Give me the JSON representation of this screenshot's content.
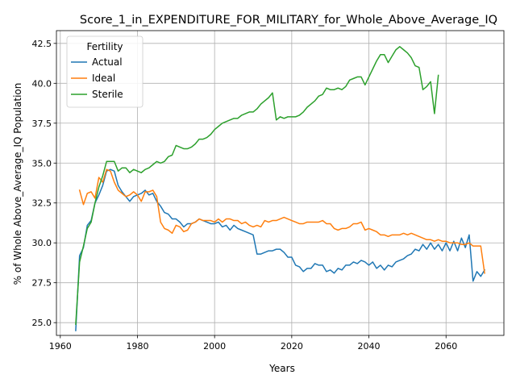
{
  "chart_data": {
    "type": "line",
    "title": "Score_1_in_EXPENDITURE_FOR_MILITARY_for_Whole_Above_Average_IQ",
    "xlabel": "Years",
    "ylabel": "% of Whole Above_Average_IQ Population",
    "xlim": [
      1959,
      2075
    ],
    "ylim": [
      24.2,
      43.3
    ],
    "xticks": [
      1960,
      1980,
      2000,
      2020,
      2040,
      2060
    ],
    "yticks": [
      25.0,
      27.5,
      30.0,
      32.5,
      35.0,
      37.5,
      40.0,
      42.5
    ],
    "grid": true,
    "legend": {
      "title": "Fertility",
      "position": "top-left"
    },
    "series": [
      {
        "name": "Actual",
        "color": "#1f77b4",
        "points": [
          [
            1964,
            24.5
          ],
          [
            1965,
            29.2
          ],
          [
            1966,
            29.7
          ],
          [
            1967,
            31.1
          ],
          [
            1968,
            31.4
          ],
          [
            1969,
            32.5
          ],
          [
            1970,
            33.0
          ],
          [
            1971,
            33.6
          ],
          [
            1972,
            34.5
          ],
          [
            1973,
            34.6
          ],
          [
            1974,
            34.5
          ],
          [
            1975,
            33.6
          ],
          [
            1976,
            33.2
          ],
          [
            1977,
            32.9
          ],
          [
            1978,
            32.6
          ],
          [
            1979,
            32.9
          ],
          [
            1980,
            33.0
          ],
          [
            1981,
            33.1
          ],
          [
            1982,
            33.3
          ],
          [
            1983,
            33.0
          ],
          [
            1984,
            33.1
          ],
          [
            1985,
            32.6
          ],
          [
            1986,
            32.3
          ],
          [
            1987,
            31.9
          ],
          [
            1988,
            31.8
          ],
          [
            1989,
            31.5
          ],
          [
            1990,
            31.5
          ],
          [
            1991,
            31.3
          ],
          [
            1992,
            31.0
          ],
          [
            1993,
            31.2
          ],
          [
            1994,
            31.2
          ],
          [
            1995,
            31.3
          ],
          [
            1996,
            31.5
          ],
          [
            1997,
            31.4
          ],
          [
            1998,
            31.3
          ],
          [
            1999,
            31.2
          ],
          [
            2000,
            31.2
          ],
          [
            2001,
            31.3
          ],
          [
            2002,
            31.0
          ],
          [
            2003,
            31.1
          ],
          [
            2004,
            30.8
          ],
          [
            2005,
            31.1
          ],
          [
            2006,
            30.9
          ],
          [
            2007,
            30.8
          ],
          [
            2008,
            30.7
          ],
          [
            2009,
            30.6
          ],
          [
            2010,
            30.5
          ],
          [
            2011,
            29.3
          ],
          [
            2012,
            29.3
          ],
          [
            2013,
            29.4
          ],
          [
            2014,
            29.5
          ],
          [
            2015,
            29.5
          ],
          [
            2016,
            29.6
          ],
          [
            2017,
            29.6
          ],
          [
            2018,
            29.4
          ],
          [
            2019,
            29.1
          ],
          [
            2020,
            29.1
          ],
          [
            2021,
            28.6
          ],
          [
            2022,
            28.5
          ],
          [
            2023,
            28.2
          ],
          [
            2024,
            28.4
          ],
          [
            2025,
            28.4
          ],
          [
            2026,
            28.7
          ],
          [
            2027,
            28.6
          ],
          [
            2028,
            28.6
          ],
          [
            2029,
            28.2
          ],
          [
            2030,
            28.3
          ],
          [
            2031,
            28.1
          ],
          [
            2032,
            28.4
          ],
          [
            2033,
            28.3
          ],
          [
            2034,
            28.6
          ],
          [
            2035,
            28.6
          ],
          [
            2036,
            28.8
          ],
          [
            2037,
            28.7
          ],
          [
            2038,
            28.9
          ],
          [
            2039,
            28.8
          ],
          [
            2040,
            28.6
          ],
          [
            2041,
            28.8
          ],
          [
            2042,
            28.4
          ],
          [
            2043,
            28.6
          ],
          [
            2044,
            28.3
          ],
          [
            2045,
            28.6
          ],
          [
            2046,
            28.5
          ],
          [
            2047,
            28.8
          ],
          [
            2048,
            28.9
          ],
          [
            2049,
            29.0
          ],
          [
            2050,
            29.2
          ],
          [
            2051,
            29.3
          ],
          [
            2052,
            29.6
          ],
          [
            2053,
            29.5
          ],
          [
            2054,
            29.9
          ],
          [
            2055,
            29.6
          ],
          [
            2056,
            30.0
          ],
          [
            2057,
            29.6
          ],
          [
            2058,
            29.9
          ],
          [
            2059,
            29.5
          ],
          [
            2060,
            30.0
          ],
          [
            2061,
            29.5
          ],
          [
            2062,
            30.1
          ],
          [
            2063,
            29.5
          ],
          [
            2064,
            30.3
          ],
          [
            2065,
            29.7
          ],
          [
            2066,
            30.5
          ],
          [
            2067,
            27.6
          ],
          [
            2068,
            28.2
          ],
          [
            2069,
            27.9
          ],
          [
            2070,
            28.3
          ]
        ]
      },
      {
        "name": "Ideal",
        "color": "#ff7f0e",
        "points": [
          [
            1965,
            33.3
          ],
          [
            1966,
            32.4
          ],
          [
            1967,
            33.1
          ],
          [
            1968,
            33.2
          ],
          [
            1969,
            32.8
          ],
          [
            1970,
            34.1
          ],
          [
            1971,
            33.8
          ],
          [
            1972,
            34.6
          ],
          [
            1973,
            34.5
          ],
          [
            1974,
            33.8
          ],
          [
            1975,
            33.3
          ],
          [
            1976,
            33.1
          ],
          [
            1977,
            32.9
          ],
          [
            1978,
            33.0
          ],
          [
            1979,
            33.2
          ],
          [
            1980,
            33.0
          ],
          [
            1981,
            32.6
          ],
          [
            1982,
            33.2
          ],
          [
            1983,
            33.2
          ],
          [
            1984,
            33.3
          ],
          [
            1985,
            32.9
          ],
          [
            1986,
            31.3
          ],
          [
            1987,
            30.9
          ],
          [
            1988,
            30.8
          ],
          [
            1989,
            30.6
          ],
          [
            1990,
            31.1
          ],
          [
            1991,
            31.0
          ],
          [
            1992,
            30.7
          ],
          [
            1993,
            30.8
          ],
          [
            1994,
            31.2
          ],
          [
            1995,
            31.3
          ],
          [
            1996,
            31.5
          ],
          [
            1997,
            31.4
          ],
          [
            1998,
            31.4
          ],
          [
            1999,
            31.4
          ],
          [
            2000,
            31.3
          ],
          [
            2001,
            31.5
          ],
          [
            2002,
            31.3
          ],
          [
            2003,
            31.5
          ],
          [
            2004,
            31.5
          ],
          [
            2005,
            31.4
          ],
          [
            2006,
            31.4
          ],
          [
            2007,
            31.2
          ],
          [
            2008,
            31.3
          ],
          [
            2009,
            31.1
          ],
          [
            2010,
            31.0
          ],
          [
            2011,
            31.1
          ],
          [
            2012,
            31.0
          ],
          [
            2013,
            31.4
          ],
          [
            2014,
            31.3
          ],
          [
            2015,
            31.4
          ],
          [
            2016,
            31.4
          ],
          [
            2017,
            31.5
          ],
          [
            2018,
            31.6
          ],
          [
            2019,
            31.5
          ],
          [
            2020,
            31.4
          ],
          [
            2021,
            31.3
          ],
          [
            2022,
            31.2
          ],
          [
            2023,
            31.2
          ],
          [
            2024,
            31.3
          ],
          [
            2025,
            31.3
          ],
          [
            2026,
            31.3
          ],
          [
            2027,
            31.3
          ],
          [
            2028,
            31.4
          ],
          [
            2029,
            31.2
          ],
          [
            2030,
            31.2
          ],
          [
            2031,
            30.9
          ],
          [
            2032,
            30.8
          ],
          [
            2033,
            30.9
          ],
          [
            2034,
            30.9
          ],
          [
            2035,
            31.0
          ],
          [
            2036,
            31.2
          ],
          [
            2037,
            31.2
          ],
          [
            2038,
            31.3
          ],
          [
            2039,
            30.8
          ],
          [
            2040,
            30.9
          ],
          [
            2041,
            30.8
          ],
          [
            2042,
            30.7
          ],
          [
            2043,
            30.5
          ],
          [
            2044,
            30.5
          ],
          [
            2045,
            30.4
          ],
          [
            2046,
            30.5
          ],
          [
            2047,
            30.5
          ],
          [
            2048,
            30.5
          ],
          [
            2049,
            30.6
          ],
          [
            2050,
            30.5
          ],
          [
            2051,
            30.6
          ],
          [
            2052,
            30.5
          ],
          [
            2053,
            30.4
          ],
          [
            2054,
            30.3
          ],
          [
            2055,
            30.2
          ],
          [
            2056,
            30.2
          ],
          [
            2057,
            30.1
          ],
          [
            2058,
            30.2
          ],
          [
            2059,
            30.1
          ],
          [
            2060,
            30.1
          ],
          [
            2061,
            30.0
          ],
          [
            2062,
            30.0
          ],
          [
            2063,
            30.0
          ],
          [
            2064,
            29.9
          ],
          [
            2065,
            29.9
          ],
          [
            2066,
            30.0
          ],
          [
            2067,
            29.8
          ],
          [
            2068,
            29.8
          ],
          [
            2069,
            29.8
          ],
          [
            2070,
            28.1
          ]
        ]
      },
      {
        "name": "Sterile",
        "color": "#2ca02c",
        "points": [
          [
            1964,
            24.9
          ],
          [
            1965,
            28.8
          ],
          [
            1966,
            29.8
          ],
          [
            1967,
            30.9
          ],
          [
            1968,
            31.3
          ],
          [
            1969,
            32.5
          ],
          [
            1970,
            33.5
          ],
          [
            1971,
            34.2
          ],
          [
            1972,
            35.1
          ],
          [
            1973,
            35.1
          ],
          [
            1974,
            35.1
          ],
          [
            1975,
            34.5
          ],
          [
            1976,
            34.7
          ],
          [
            1977,
            34.7
          ],
          [
            1978,
            34.4
          ],
          [
            1979,
            34.6
          ],
          [
            1980,
            34.5
          ],
          [
            1981,
            34.4
          ],
          [
            1982,
            34.6
          ],
          [
            1983,
            34.7
          ],
          [
            1984,
            34.9
          ],
          [
            1985,
            35.1
          ],
          [
            1986,
            35.0
          ],
          [
            1987,
            35.1
          ],
          [
            1988,
            35.4
          ],
          [
            1989,
            35.5
          ],
          [
            1990,
            36.1
          ],
          [
            1991,
            36.0
          ],
          [
            1992,
            35.9
          ],
          [
            1993,
            35.9
          ],
          [
            1994,
            36.0
          ],
          [
            1995,
            36.2
          ],
          [
            1996,
            36.5
          ],
          [
            1997,
            36.5
          ],
          [
            1998,
            36.6
          ],
          [
            1999,
            36.8
          ],
          [
            2000,
            37.1
          ],
          [
            2001,
            37.3
          ],
          [
            2002,
            37.5
          ],
          [
            2003,
            37.6
          ],
          [
            2004,
            37.7
          ],
          [
            2005,
            37.8
          ],
          [
            2006,
            37.8
          ],
          [
            2007,
            38.0
          ],
          [
            2008,
            38.1
          ],
          [
            2009,
            38.2
          ],
          [
            2010,
            38.2
          ],
          [
            2011,
            38.4
          ],
          [
            2012,
            38.7
          ],
          [
            2013,
            38.9
          ],
          [
            2014,
            39.1
          ],
          [
            2015,
            39.4
          ],
          [
            2016,
            37.7
          ],
          [
            2017,
            37.9
          ],
          [
            2018,
            37.8
          ],
          [
            2019,
            37.9
          ],
          [
            2020,
            37.9
          ],
          [
            2021,
            37.9
          ],
          [
            2022,
            38.0
          ],
          [
            2023,
            38.2
          ],
          [
            2024,
            38.5
          ],
          [
            2025,
            38.7
          ],
          [
            2026,
            38.9
          ],
          [
            2027,
            39.2
          ],
          [
            2028,
            39.3
          ],
          [
            2029,
            39.7
          ],
          [
            2030,
            39.6
          ],
          [
            2031,
            39.6
          ],
          [
            2032,
            39.7
          ],
          [
            2033,
            39.6
          ],
          [
            2034,
            39.8
          ],
          [
            2035,
            40.2
          ],
          [
            2036,
            40.3
          ],
          [
            2037,
            40.4
          ],
          [
            2038,
            40.4
          ],
          [
            2039,
            39.9
          ],
          [
            2040,
            40.4
          ],
          [
            2041,
            40.9
          ],
          [
            2042,
            41.4
          ],
          [
            2043,
            41.8
          ],
          [
            2044,
            41.8
          ],
          [
            2045,
            41.3
          ],
          [
            2046,
            41.7
          ],
          [
            2047,
            42.1
          ],
          [
            2048,
            42.3
          ],
          [
            2049,
            42.1
          ],
          [
            2050,
            41.9
          ],
          [
            2051,
            41.6
          ],
          [
            2052,
            41.1
          ],
          [
            2053,
            41.0
          ],
          [
            2054,
            39.6
          ],
          [
            2055,
            39.8
          ],
          [
            2056,
            40.1
          ],
          [
            2057,
            38.1
          ],
          [
            2058,
            40.5
          ]
        ]
      }
    ]
  }
}
